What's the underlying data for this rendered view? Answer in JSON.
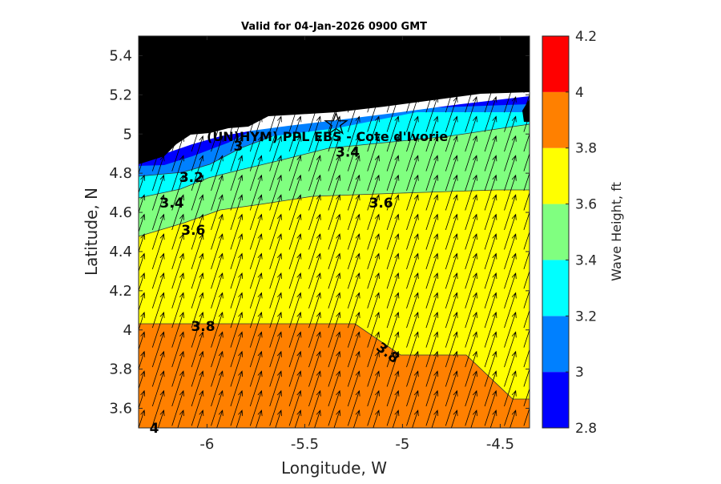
{
  "chart_data": {
    "type": "contour-map",
    "title": "Valid for 04-Jan-2026 0900 GMT",
    "xlabel": "Longitude, W",
    "ylabel": "Latitude, N",
    "xlim": [
      -6.35,
      -4.35
    ],
    "ylim": [
      3.5,
      5.5
    ],
    "xticks": [
      -6,
      -5.5,
      -5,
      -4.5
    ],
    "xtick_labels": [
      "-6",
      "-5.5",
      "-5",
      "-4.5"
    ],
    "yticks": [
      3.6,
      3.8,
      4.0,
      4.2,
      4.4,
      4.6,
      4.8,
      5.0,
      5.2,
      5.4
    ],
    "ytick_labels": [
      "3.6",
      "3.8",
      "4",
      "4.2",
      "4.4",
      "4.6",
      "4.8",
      "5",
      "5.2",
      "5.4"
    ],
    "colorbar": {
      "label": "Wave Height, ft",
      "levels": [
        2.8,
        3.0,
        3.2,
        3.4,
        3.6,
        3.8,
        4.0,
        4.2
      ],
      "tick_labels": [
        "2.8",
        "3",
        "3.2",
        "3.4",
        "3.6",
        "3.8",
        "4",
        "4.2"
      ],
      "colors": [
        "#0000ff",
        "#0080ff",
        "#00ffff",
        "#80ff80",
        "#ffff00",
        "#ff8000",
        "#ff0000"
      ]
    },
    "land_color": "#000000",
    "site_label": "(UN)HYM) PPL EBS  - Cote d'Ivorie",
    "site_marker": {
      "lon": -5.34,
      "lat": 5.05,
      "symbol": "star"
    },
    "arrow_direction": "north-north-east",
    "contour_labels": [
      {
        "text": "3",
        "lon": -5.84,
        "lat": 4.94
      },
      {
        "text": "3.2",
        "lon": -6.08,
        "lat": 4.78
      },
      {
        "text": "3.4",
        "lon": -6.18,
        "lat": 4.65
      },
      {
        "text": "3.4",
        "lon": -5.28,
        "lat": 4.91
      },
      {
        "text": "3.6",
        "lon": -6.07,
        "lat": 4.51
      },
      {
        "text": "3.6",
        "lon": -5.11,
        "lat": 4.65
      },
      {
        "text": "3.8",
        "lon": -6.02,
        "lat": 4.02
      },
      {
        "text": "3.8",
        "lon": -5.09,
        "lat": 3.89
      },
      {
        "text": "4",
        "lon": -6.27,
        "lat": 3.5
      }
    ]
  }
}
